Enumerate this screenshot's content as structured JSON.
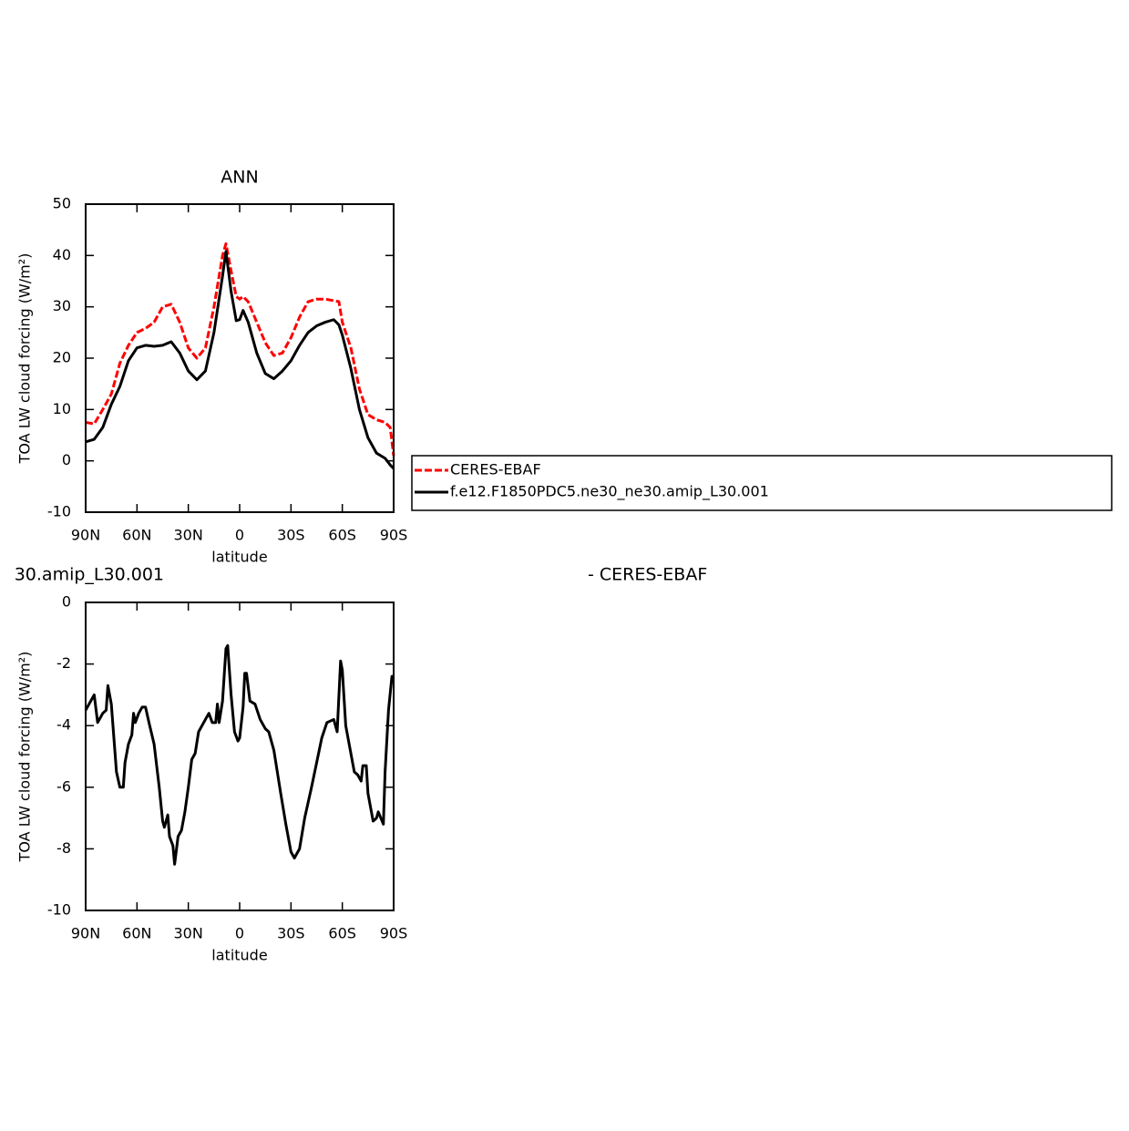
{
  "chart_data": [
    {
      "type": "line",
      "title": "ANN",
      "ylabel": "TOA LW cloud forcing (W/m²)",
      "xlabel": "latitude",
      "xlim": [
        90,
        -90
      ],
      "xticks": [
        {
          "value": 90,
          "label": "90N"
        },
        {
          "value": 60,
          "label": "60N"
        },
        {
          "value": 30,
          "label": "30N"
        },
        0,
        {
          "value": -30,
          "label": "30S"
        },
        {
          "value": -60,
          "label": "60S"
        },
        {
          "value": -90,
          "label": "90S"
        }
      ],
      "ylim": [
        -10,
        50
      ],
      "yticks": [
        -10,
        0,
        10,
        20,
        30,
        40,
        50
      ],
      "legend": "right",
      "x": [
        90,
        85,
        80,
        75,
        70,
        65,
        60,
        55,
        50,
        45,
        40,
        35,
        30,
        25,
        20,
        15,
        10,
        8,
        5,
        2,
        0,
        -2,
        -5,
        -10,
        -15,
        -20,
        -25,
        -30,
        -35,
        -40,
        -45,
        -50,
        -55,
        -58,
        -60,
        -65,
        -70,
        -75,
        -80,
        -85,
        -88,
        -90
      ],
      "series": [
        {
          "name": "CERES-EBAF",
          "color": "#ff0000",
          "linestyle": "dashed",
          "values": [
            7.5,
            7.2,
            10,
            13,
            19,
            22.5,
            25,
            25.8,
            27,
            30,
            30.5,
            27,
            22,
            20,
            22,
            30,
            40,
            42.3,
            37,
            32,
            31.5,
            32,
            31,
            27,
            23,
            20.5,
            21,
            24,
            28,
            31,
            31.5,
            31.5,
            31.2,
            31,
            27,
            22,
            14,
            9,
            8,
            7.5,
            6.5,
            1
          ]
        },
        {
          "name": "f.e12.F1850PDC5.ne30_ne30.amip_L30.001",
          "color": "#000000",
          "linestyle": "solid",
          "values": [
            3.7,
            4.2,
            6.5,
            11,
            14.5,
            19.5,
            22,
            22.5,
            22.3,
            22.5,
            23.2,
            21,
            17.5,
            15.8,
            17.5,
            25,
            36,
            40.8,
            33,
            27.3,
            27.5,
            29.3,
            27,
            21,
            17,
            16,
            17.5,
            19.5,
            22.5,
            25,
            26.3,
            27,
            27.5,
            26.5,
            24.5,
            18,
            10,
            4.5,
            1.5,
            0.5,
            -0.8,
            -1.5
          ]
        }
      ]
    },
    {
      "type": "line",
      "title": "30.amip_L30.001",
      "title_right": "- CERES-EBAF",
      "ylabel": "TOA LW cloud forcing (W/m²)",
      "xlabel": "latitude",
      "xlim": [
        90,
        -90
      ],
      "xticks": [
        {
          "value": 90,
          "label": "90N"
        },
        {
          "value": 60,
          "label": "60N"
        },
        {
          "value": 30,
          "label": "30N"
        },
        0,
        {
          "value": -30,
          "label": "30S"
        },
        {
          "value": -60,
          "label": "60S"
        },
        {
          "value": -90,
          "label": "90S"
        }
      ],
      "ylim": [
        -10,
        0
      ],
      "yticks": [
        -10,
        -8,
        -6,
        -4,
        -2,
        0
      ],
      "x": [
        90,
        88,
        85,
        83,
        80,
        78,
        77,
        75,
        72,
        70,
        68,
        67,
        65,
        63,
        62,
        61,
        59,
        57,
        55,
        53,
        50,
        47,
        45,
        44,
        42,
        41,
        39,
        38,
        36,
        34,
        32,
        30,
        28,
        26,
        24,
        20,
        18,
        16,
        14,
        13,
        12,
        10,
        8,
        7,
        5,
        3,
        1,
        0,
        -2,
        -3,
        -4,
        -6,
        -9,
        -12,
        -15,
        -17,
        -20,
        -24,
        -27,
        -30,
        -32,
        -35,
        -38,
        -42,
        -45,
        -48,
        -51,
        -55,
        -57,
        -59,
        -60,
        -62,
        -64,
        -67,
        -69,
        -71,
        -72,
        -74,
        -75,
        -78,
        -80,
        -81,
        -84,
        -85,
        -87,
        -89,
        -90
      ],
      "series": [
        {
          "color": "#000000",
          "linestyle": "solid",
          "values": [
            -3.5,
            -3.3,
            -3.0,
            -3.9,
            -3.6,
            -3.5,
            -2.7,
            -3.3,
            -5.5,
            -6.0,
            -6.0,
            -5.2,
            -4.6,
            -4.3,
            -3.6,
            -3.9,
            -3.6,
            -3.4,
            -3.4,
            -3.9,
            -4.6,
            -6.0,
            -7.1,
            -7.3,
            -6.9,
            -7.6,
            -7.9,
            -8.5,
            -7.6,
            -7.4,
            -6.8,
            -6.0,
            -5.1,
            -4.9,
            -4.2,
            -3.8,
            -3.6,
            -3.9,
            -3.9,
            -3.3,
            -3.9,
            -3.2,
            -1.5,
            -1.4,
            -3.0,
            -4.2,
            -4.5,
            -4.4,
            -3.4,
            -2.3,
            -2.3,
            -3.2,
            -3.3,
            -3.8,
            -4.1,
            -4.2,
            -4.8,
            -6.2,
            -7.2,
            -8.1,
            -8.3,
            -8.0,
            -7.0,
            -6.0,
            -5.2,
            -4.4,
            -3.9,
            -3.8,
            -4.2,
            -1.9,
            -2.2,
            -4.0,
            -4.6,
            -5.5,
            -5.6,
            -5.8,
            -5.3,
            -5.3,
            -6.2,
            -7.1,
            -7.0,
            -6.8,
            -7.2,
            -5.5,
            -3.5,
            -2.4,
            -2.4
          ]
        }
      ]
    }
  ]
}
